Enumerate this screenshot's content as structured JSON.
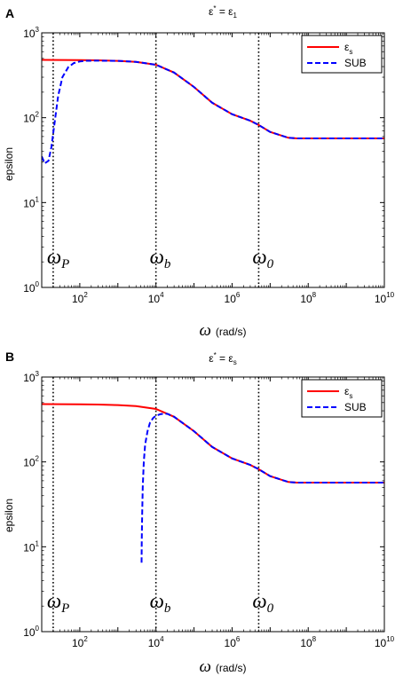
{
  "panels": [
    {
      "label": "A",
      "title": {
        "main": "ε",
        "sup": "*",
        "rest": " = ε",
        "sub": "1"
      },
      "ylabel": "epsilon",
      "xlabel_symbol": "ω",
      "xlabel_unit": "(rad/s)",
      "legend": [
        {
          "base": "ε",
          "sub": "s"
        },
        {
          "base": "SUB",
          "sub": ""
        }
      ],
      "annotations": [
        {
          "base": "ω",
          "sub": "P",
          "x": 20
        },
        {
          "base": "ω",
          "sub": "b",
          "x": 10000
        },
        {
          "base": "ω",
          "sub": "0",
          "x": 5000000
        }
      ]
    },
    {
      "label": "B",
      "title": {
        "main": "ε",
        "sup": "*",
        "rest": " = ε",
        "sub": "s"
      },
      "ylabel": "epsilon",
      "xlabel_symbol": "ω",
      "xlabel_unit": "(rad/s)",
      "legend": [
        {
          "base": "ε",
          "sub": "s"
        },
        {
          "base": "SUB",
          "sub": ""
        }
      ],
      "annotations": [
        {
          "base": "ω",
          "sub": "P",
          "x": 20
        },
        {
          "base": "ω",
          "sub": "b",
          "x": 10000
        },
        {
          "base": "ω",
          "sub": "0",
          "x": 5000000
        }
      ]
    }
  ],
  "chart_data": [
    {
      "type": "line",
      "title": "ε* = ε1",
      "xlabel": "ω (rad/s)",
      "ylabel": "epsilon",
      "xscale": "log",
      "yscale": "log",
      "xlim": [
        10,
        10000000000
      ],
      "ylim": [
        1,
        1000
      ],
      "xticks": [
        100,
        10000,
        1000000,
        100000000,
        10000000000
      ],
      "yticks": [
        1,
        10,
        100,
        1000
      ],
      "xtick_labels": [
        {
          "base": "10",
          "exp": "2"
        },
        {
          "base": "10",
          "exp": "4"
        },
        {
          "base": "10",
          "exp": "6"
        },
        {
          "base": "10",
          "exp": "8"
        },
        {
          "base": "10",
          "exp": "10"
        }
      ],
      "ytick_labels": [
        {
          "base": "10",
          "exp": "0"
        },
        {
          "base": "10",
          "exp": "1"
        },
        {
          "base": "10",
          "exp": "2"
        },
        {
          "base": "10",
          "exp": "3"
        }
      ],
      "vlines": [
        20,
        10000,
        5000000
      ],
      "legend_position": "top-right",
      "series": [
        {
          "name": "εs",
          "color": "#ff0000",
          "style": "solid",
          "x": [
            10,
            30,
            100,
            300,
            1000,
            3000,
            10000,
            30000,
            100000,
            300000,
            1000000,
            3000000,
            5000000,
            10000000,
            30000000,
            50000000,
            100000000,
            1000000000,
            10000000000
          ],
          "y": [
            480,
            479,
            477,
            474,
            467,
            455,
            420,
            340,
            230,
            150,
            110,
            92,
            82,
            68,
            58,
            57,
            57,
            57,
            57
          ]
        },
        {
          "name": "SUB",
          "color": "#0000ff",
          "style": "dashed",
          "x": [
            10,
            12,
            15,
            18,
            22,
            27,
            35,
            50,
            70,
            100,
            150,
            250,
            500,
            1000,
            3000,
            10000,
            30000,
            100000,
            300000,
            1000000,
            3000000,
            5000000,
            10000000,
            30000000,
            50000000,
            100000000,
            1000000000,
            10000000000
          ],
          "y": [
            35,
            29,
            31,
            45,
            90,
            180,
            300,
            395,
            440,
            460,
            468,
            470,
            469,
            467,
            455,
            420,
            340,
            230,
            150,
            110,
            92,
            82,
            68,
            58,
            57,
            57,
            57,
            57
          ]
        }
      ]
    },
    {
      "type": "line",
      "title": "ε* = εs",
      "xlabel": "ω (rad/s)",
      "ylabel": "epsilon",
      "xscale": "log",
      "yscale": "log",
      "xlim": [
        10,
        10000000000
      ],
      "ylim": [
        1,
        1000
      ],
      "xticks": [
        100,
        10000,
        1000000,
        100000000,
        10000000000
      ],
      "yticks": [
        1,
        10,
        100,
        1000
      ],
      "xtick_labels": [
        {
          "base": "10",
          "exp": "2"
        },
        {
          "base": "10",
          "exp": "4"
        },
        {
          "base": "10",
          "exp": "6"
        },
        {
          "base": "10",
          "exp": "8"
        },
        {
          "base": "10",
          "exp": "10"
        }
      ],
      "ytick_labels": [
        {
          "base": "10",
          "exp": "0"
        },
        {
          "base": "10",
          "exp": "1"
        },
        {
          "base": "10",
          "exp": "2"
        },
        {
          "base": "10",
          "exp": "3"
        }
      ],
      "vlines": [
        20,
        10000,
        5000000
      ],
      "legend_position": "top-right",
      "series": [
        {
          "name": "εs",
          "color": "#ff0000",
          "style": "solid",
          "x": [
            10,
            30,
            100,
            300,
            1000,
            3000,
            10000,
            30000,
            100000,
            300000,
            1000000,
            3000000,
            5000000,
            10000000,
            30000000,
            50000000,
            100000000,
            1000000000,
            10000000000
          ],
          "y": [
            480,
            479,
            477,
            474,
            467,
            455,
            420,
            340,
            230,
            150,
            110,
            92,
            82,
            68,
            58,
            57,
            57,
            57,
            57
          ]
        },
        {
          "name": "SUB",
          "color": "#0000ff",
          "style": "dashed",
          "x": [
            4200,
            4250,
            4350,
            4500,
            4800,
            5200,
            6000,
            7000,
            8500,
            10000,
            13000,
            17000,
            20000,
            30000,
            100000,
            300000,
            1000000,
            3000000,
            5000000,
            10000000,
            30000000,
            50000000,
            100000000,
            1000000000,
            10000000000
          ],
          "y": [
            6.5,
            12,
            25,
            50,
            100,
            160,
            230,
            290,
            330,
            350,
            365,
            370,
            368,
            340,
            230,
            150,
            110,
            92,
            82,
            68,
            58,
            57,
            57,
            57,
            57
          ]
        }
      ]
    }
  ]
}
